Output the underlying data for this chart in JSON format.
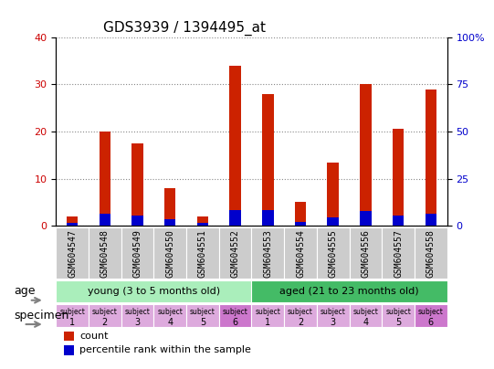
{
  "title": "GDS3939 / 1394495_at",
  "samples": [
    "GSM604547",
    "GSM604548",
    "GSM604549",
    "GSM604550",
    "GSM604551",
    "GSM604552",
    "GSM604553",
    "GSM604554",
    "GSM604555",
    "GSM604556",
    "GSM604557",
    "GSM604558"
  ],
  "counts": [
    2.0,
    20.0,
    17.5,
    8.0,
    2.0,
    34.0,
    28.0,
    5.0,
    13.5,
    30.0,
    20.5,
    29.0
  ],
  "percentile_ranks": [
    1.5,
    6.5,
    5.5,
    3.5,
    1.5,
    8.5,
    8.5,
    2.0,
    4.5,
    8.0,
    5.5,
    6.5
  ],
  "ylim_left": [
    0,
    40
  ],
  "ylim_right": [
    0,
    100
  ],
  "yticks_left": [
    0,
    10,
    20,
    30,
    40
  ],
  "yticks_right": [
    0,
    25,
    50,
    75,
    100
  ],
  "ytick_labels_right": [
    "0",
    "25",
    "50",
    "75",
    "100%"
  ],
  "ytick_labels_left": [
    "0",
    "10",
    "20",
    "30",
    "40"
  ],
  "bar_color_red": "#cc2200",
  "bar_color_blue": "#0000cc",
  "bar_width": 0.35,
  "age_groups": [
    {
      "label": "young (3 to 5 months old)",
      "start": 0,
      "end": 6,
      "color": "#aaeebb"
    },
    {
      "label": "aged (21 to 23 months old)",
      "start": 6,
      "end": 12,
      "color": "#44bb66"
    }
  ],
  "specimen_colors_light": "#ddaadd",
  "specimen_colors_dark": "#cc77cc",
  "specimen_dark_indices": [
    5,
    11
  ],
  "specimen_numbers": [
    "1",
    "2",
    "3",
    "4",
    "5",
    "6",
    "1",
    "2",
    "3",
    "4",
    "5",
    "6"
  ],
  "grid_color": "#888888",
  "tick_label_color_left": "#cc0000",
  "tick_label_color_right": "#0000cc",
  "xlabel_area_color": "#cccccc",
  "age_label": "age",
  "specimen_label": "specimen",
  "legend_count": "count",
  "legend_percentile": "percentile rank within the sample"
}
